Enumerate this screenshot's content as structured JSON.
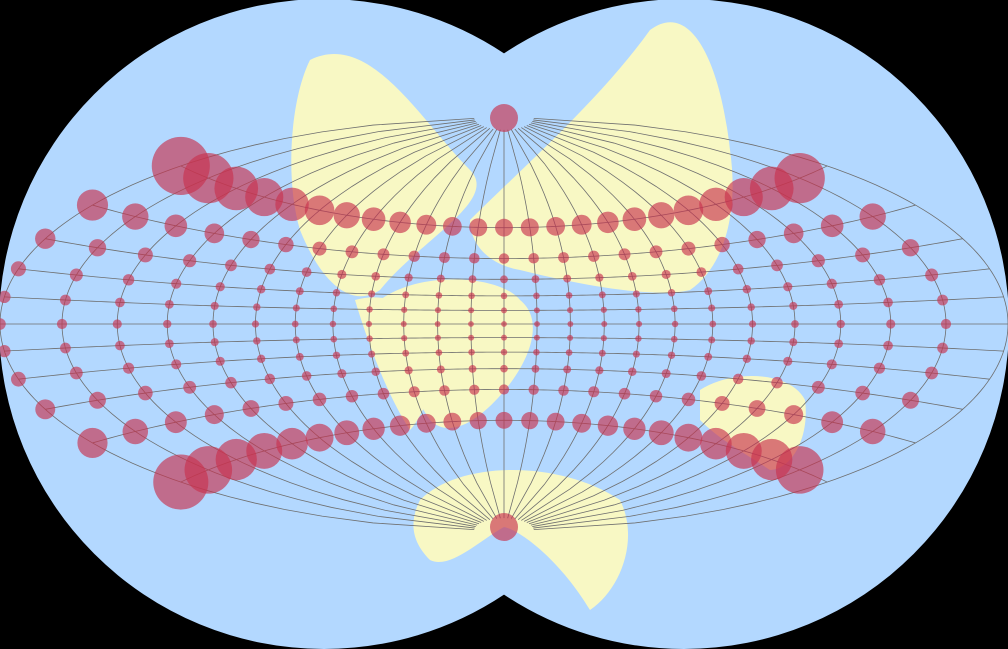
{
  "map": {
    "colors": {
      "background": "#000000",
      "ocean": "#b3d8ff",
      "land": "#f8f8c4",
      "graticule": "#6e6e6e",
      "indicatrix": "#c8324e",
      "indicatrix_opacity": 0.65
    },
    "graticule_step_deg": 15,
    "indicatrix_step_deg": 15
  }
}
